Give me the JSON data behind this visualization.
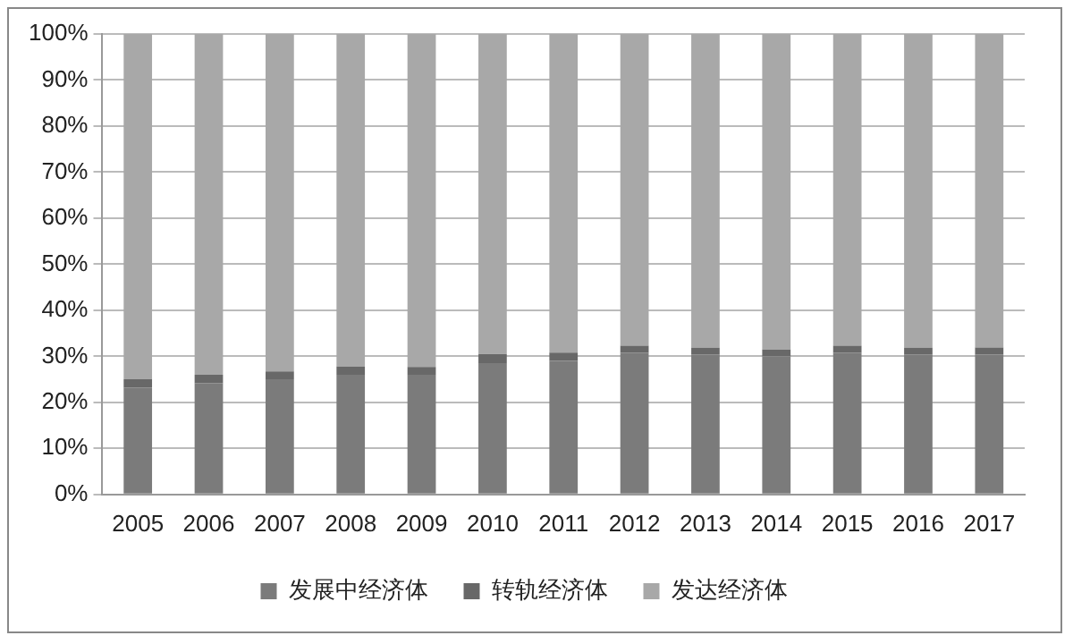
{
  "chart_data": {
    "type": "bar",
    "stacked": true,
    "categories": [
      "2005",
      "2006",
      "2007",
      "2008",
      "2009",
      "2010",
      "2011",
      "2012",
      "2013",
      "2014",
      "2015",
      "2016",
      "2017"
    ],
    "series": [
      {
        "name": "发展中经济体",
        "color": "#7b7b7b",
        "values": [
          23.2,
          24.2,
          25.0,
          26.0,
          26.0,
          28.5,
          29.0,
          30.8,
          30.4,
          30.0,
          30.8,
          30.4,
          30.4
        ]
      },
      {
        "name": "转轨经济体",
        "color": "#686868",
        "values": [
          1.8,
          1.8,
          1.7,
          1.8,
          1.7,
          2.0,
          1.8,
          1.5,
          1.5,
          1.5,
          1.5,
          1.5,
          1.5
        ]
      },
      {
        "name": "发达经济体",
        "color": "#a8a8a8",
        "values": [
          75.0,
          74.0,
          73.3,
          72.2,
          72.3,
          69.5,
          69.2,
          67.7,
          68.1,
          68.5,
          67.7,
          68.1,
          68.1
        ]
      }
    ],
    "ylim": [
      0,
      100
    ],
    "yticks": [
      {
        "value": 0,
        "label": "0%"
      },
      {
        "value": 10,
        "label": "10%"
      },
      {
        "value": 20,
        "label": "20%"
      },
      {
        "value": 30,
        "label": "30%"
      },
      {
        "value": 40,
        "label": "40%"
      },
      {
        "value": 50,
        "label": "50%"
      },
      {
        "value": 60,
        "label": "60%"
      },
      {
        "value": 70,
        "label": "70%"
      },
      {
        "value": 80,
        "label": "80%"
      },
      {
        "value": 90,
        "label": "90%"
      },
      {
        "value": 100,
        "label": "100%"
      }
    ],
    "grid": "y",
    "legend": "bottom"
  }
}
